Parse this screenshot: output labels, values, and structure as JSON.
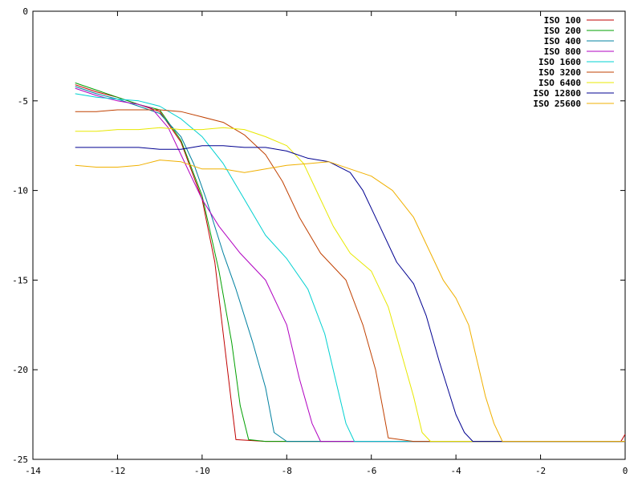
{
  "chart_data": {
    "type": "line",
    "title": "",
    "xlabel": "",
    "ylabel": "",
    "xlim": [
      -14,
      0
    ],
    "ylim": [
      -25,
      0
    ],
    "x_ticks": [
      -14,
      -12,
      -10,
      -8,
      -6,
      -4,
      -2,
      0
    ],
    "y_ticks": [
      0,
      -5,
      -10,
      -15,
      -20,
      -25
    ],
    "x_tick_labels": [
      "-14",
      "-12",
      "-10",
      "-8",
      "-6",
      "-4",
      "-2",
      "0"
    ],
    "y_tick_labels": [
      "0",
      "-5",
      "-10",
      "-15",
      "-20",
      "-25"
    ],
    "grid": false,
    "legend_position": "top-right",
    "series": [
      {
        "name": "ISO 100",
        "color": "#c00000",
        "points": [
          [
            -13,
            -4.1
          ],
          [
            -12.5,
            -4.5
          ],
          [
            -12,
            -4.8
          ],
          [
            -11.5,
            -5.2
          ],
          [
            -11,
            -5.6
          ],
          [
            -10.5,
            -7.3
          ],
          [
            -10,
            -10.5
          ],
          [
            -9.7,
            -14
          ],
          [
            -9.5,
            -18
          ],
          [
            -9.3,
            -22
          ],
          [
            -9.2,
            -23.9
          ],
          [
            -8.5,
            -24
          ],
          [
            -7.5,
            -24
          ],
          [
            -6,
            -24
          ],
          [
            -4,
            -24
          ],
          [
            -2,
            -24
          ],
          [
            -0.1,
            -24
          ],
          [
            0,
            -23.6
          ]
        ]
      },
      {
        "name": "ISO 200",
        "color": "#00a000",
        "points": [
          [
            -13,
            -4.0
          ],
          [
            -12.5,
            -4.4
          ],
          [
            -12,
            -4.8
          ],
          [
            -11.5,
            -5.2
          ],
          [
            -11,
            -5.5
          ],
          [
            -10.5,
            -7.2
          ],
          [
            -10,
            -10.3
          ],
          [
            -9.6,
            -14.5
          ],
          [
            -9.3,
            -18.5
          ],
          [
            -9.1,
            -22
          ],
          [
            -8.9,
            -23.9
          ],
          [
            -8.5,
            -24
          ],
          [
            -7.5,
            -24
          ],
          [
            -6,
            -24
          ],
          [
            -4,
            -24
          ],
          [
            -2,
            -24
          ],
          [
            0,
            -24
          ]
        ]
      },
      {
        "name": "ISO 400",
        "color": "#0080a0",
        "points": [
          [
            -13,
            -4.2
          ],
          [
            -12.5,
            -4.6
          ],
          [
            -12,
            -4.9
          ],
          [
            -11.5,
            -5.3
          ],
          [
            -11,
            -5.7
          ],
          [
            -10.5,
            -7.0
          ],
          [
            -10.2,
            -8.5
          ],
          [
            -9.9,
            -10.5
          ],
          [
            -9.5,
            -13.5
          ],
          [
            -9.2,
            -15.5
          ],
          [
            -8.8,
            -18.5
          ],
          [
            -8.5,
            -21
          ],
          [
            -8.3,
            -23.5
          ],
          [
            -8,
            -24
          ],
          [
            -7,
            -24
          ],
          [
            -6,
            -24
          ],
          [
            -4,
            -24
          ],
          [
            -2,
            -24
          ],
          [
            0,
            -24
          ]
        ]
      },
      {
        "name": "ISO 800",
        "color": "#b000c0",
        "points": [
          [
            -13,
            -4.3
          ],
          [
            -12.5,
            -4.7
          ],
          [
            -12,
            -5.0
          ],
          [
            -11.5,
            -5.2
          ],
          [
            -11.2,
            -5.4
          ],
          [
            -10.8,
            -6.5
          ],
          [
            -10.4,
            -8.5
          ],
          [
            -10,
            -10.5
          ],
          [
            -9.6,
            -12.0
          ],
          [
            -9.1,
            -13.5
          ],
          [
            -8.5,
            -15.0
          ],
          [
            -8,
            -17.5
          ],
          [
            -7.7,
            -20.5
          ],
          [
            -7.4,
            -23
          ],
          [
            -7.2,
            -24
          ],
          [
            -6.5,
            -24
          ],
          [
            -6,
            -24
          ],
          [
            -4,
            -24
          ],
          [
            -2,
            -24
          ],
          [
            0,
            -24
          ]
        ]
      },
      {
        "name": "ISO 1600",
        "color": "#00d0d0",
        "points": [
          [
            -13,
            -4.6
          ],
          [
            -12.5,
            -4.8
          ],
          [
            -12,
            -4.9
          ],
          [
            -11.5,
            -5.0
          ],
          [
            -11,
            -5.3
          ],
          [
            -10.5,
            -6.0
          ],
          [
            -10,
            -7.0
          ],
          [
            -9.5,
            -8.5
          ],
          [
            -9,
            -10.5
          ],
          [
            -8.5,
            -12.5
          ],
          [
            -8,
            -13.8
          ],
          [
            -7.5,
            -15.5
          ],
          [
            -7.1,
            -18
          ],
          [
            -6.8,
            -21
          ],
          [
            -6.6,
            -23
          ],
          [
            -6.4,
            -24
          ],
          [
            -6,
            -24
          ],
          [
            -4,
            -24
          ],
          [
            -2,
            -24
          ],
          [
            0,
            -24
          ]
        ]
      },
      {
        "name": "ISO 3200",
        "color": "#c04000",
        "points": [
          [
            -13,
            -5.6
          ],
          [
            -12.5,
            -5.6
          ],
          [
            -12,
            -5.5
          ],
          [
            -11.5,
            -5.5
          ],
          [
            -11,
            -5.5
          ],
          [
            -10.5,
            -5.6
          ],
          [
            -10,
            -5.9
          ],
          [
            -9.5,
            -6.2
          ],
          [
            -9,
            -6.9
          ],
          [
            -8.5,
            -8.0
          ],
          [
            -8.1,
            -9.5
          ],
          [
            -7.7,
            -11.5
          ],
          [
            -7.2,
            -13.5
          ],
          [
            -6.6,
            -15.0
          ],
          [
            -6.2,
            -17.5
          ],
          [
            -5.9,
            -20
          ],
          [
            -5.7,
            -22.5
          ],
          [
            -5.6,
            -23.8
          ],
          [
            -5,
            -24
          ],
          [
            -4,
            -24
          ],
          [
            -2,
            -24
          ],
          [
            0,
            -24
          ]
        ]
      },
      {
        "name": "ISO 6400",
        "color": "#e8e800",
        "points": [
          [
            -13,
            -6.7
          ],
          [
            -12.5,
            -6.7
          ],
          [
            -12,
            -6.6
          ],
          [
            -11.5,
            -6.6
          ],
          [
            -11,
            -6.5
          ],
          [
            -10.5,
            -6.6
          ],
          [
            -10,
            -6.6
          ],
          [
            -9.5,
            -6.5
          ],
          [
            -9,
            -6.6
          ],
          [
            -8.5,
            -7.0
          ],
          [
            -8,
            -7.5
          ],
          [
            -7.6,
            -8.5
          ],
          [
            -7.3,
            -10.0
          ],
          [
            -6.9,
            -12.0
          ],
          [
            -6.5,
            -13.5
          ],
          [
            -6,
            -14.5
          ],
          [
            -5.6,
            -16.5
          ],
          [
            -5.3,
            -19.0
          ],
          [
            -5.0,
            -21.5
          ],
          [
            -4.8,
            -23.5
          ],
          [
            -4.6,
            -24
          ],
          [
            -4,
            -24
          ],
          [
            -2,
            -24
          ],
          [
            0,
            -24
          ]
        ]
      },
      {
        "name": "ISO 12800",
        "color": "#000090",
        "points": [
          [
            -13,
            -7.6
          ],
          [
            -12.5,
            -7.6
          ],
          [
            -12,
            -7.6
          ],
          [
            -11.5,
            -7.6
          ],
          [
            -11,
            -7.7
          ],
          [
            -10.5,
            -7.7
          ],
          [
            -10,
            -7.5
          ],
          [
            -9.5,
            -7.5
          ],
          [
            -9,
            -7.6
          ],
          [
            -8.5,
            -7.6
          ],
          [
            -8,
            -7.8
          ],
          [
            -7.5,
            -8.2
          ],
          [
            -7,
            -8.4
          ],
          [
            -6.5,
            -9.0
          ],
          [
            -6.2,
            -10.0
          ],
          [
            -5.8,
            -12.0
          ],
          [
            -5.4,
            -14.0
          ],
          [
            -5,
            -15.2
          ],
          [
            -4.7,
            -17.0
          ],
          [
            -4.4,
            -19.5
          ],
          [
            -4.2,
            -21.0
          ],
          [
            -4.0,
            -22.5
          ],
          [
            -3.8,
            -23.5
          ],
          [
            -3.6,
            -24
          ],
          [
            -2,
            -24
          ],
          [
            0,
            -24
          ]
        ]
      },
      {
        "name": "ISO 25600",
        "color": "#f0b000",
        "points": [
          [
            -13,
            -8.6
          ],
          [
            -12.5,
            -8.7
          ],
          [
            -12,
            -8.7
          ],
          [
            -11.5,
            -8.6
          ],
          [
            -11,
            -8.3
          ],
          [
            -10.5,
            -8.4
          ],
          [
            -10,
            -8.8
          ],
          [
            -9.5,
            -8.8
          ],
          [
            -9,
            -9.0
          ],
          [
            -8.5,
            -8.8
          ],
          [
            -8,
            -8.6
          ],
          [
            -7.5,
            -8.5
          ],
          [
            -7,
            -8.4
          ],
          [
            -6.5,
            -8.8
          ],
          [
            -6,
            -9.2
          ],
          [
            -5.5,
            -10.0
          ],
          [
            -5,
            -11.5
          ],
          [
            -4.6,
            -13.5
          ],
          [
            -4.3,
            -15.0
          ],
          [
            -4,
            -16.0
          ],
          [
            -3.7,
            -17.5
          ],
          [
            -3.5,
            -19.5
          ],
          [
            -3.3,
            -21.5
          ],
          [
            -3.1,
            -23.0
          ],
          [
            -2.9,
            -24
          ],
          [
            -2,
            -24
          ],
          [
            0,
            -24
          ]
        ]
      }
    ]
  }
}
